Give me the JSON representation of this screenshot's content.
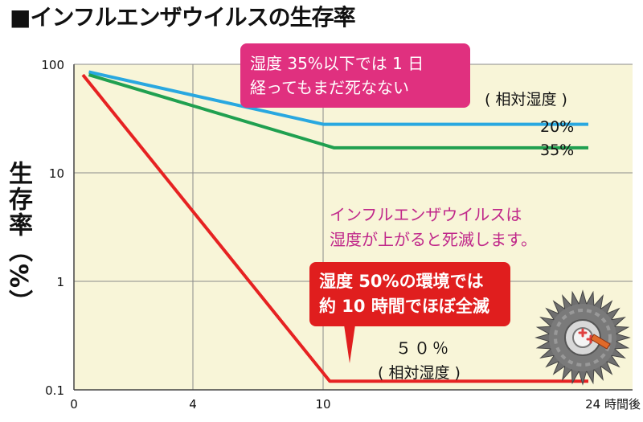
{
  "title": "■インフルエンザウイルスの生存率",
  "ylabel": "生存率（%）",
  "callouts": {
    "humidity35": [
      "湿度 35%以下では 1 日",
      "経ってもまだ死なない"
    ],
    "humidity50": [
      "湿度 50%の環境では",
      "約 10 時間でほぼ全滅"
    ],
    "annotation": [
      "インフルエンザウイルスは",
      "湿度が上がると死滅します。"
    ]
  },
  "legend_title": "( 相対湿度 )",
  "legend_50": [
    "５０％",
    "( 相対湿度 )"
  ],
  "colors": {
    "plot_bg": "#f8f5d8",
    "grid": "#8a8a8a",
    "series_20": "#29a8e0",
    "series_35": "#20a050",
    "series_50": "#e62222",
    "callout_pink": "#e0307f",
    "callout_red": "#e01e1e",
    "annotation_text": "#c0288a"
  },
  "icon": "virus-icon",
  "chart_data": {
    "type": "line",
    "title": "■インフルエンザウイルスの生存率",
    "ylabel": "生存率（%）",
    "xlabel": "24 時間後",
    "y_scale": "log",
    "ylim": [
      0.1,
      100
    ],
    "xlim": [
      0,
      24
    ],
    "x_ticks": [
      {
        "value": 0,
        "label": "0"
      },
      {
        "value": 4,
        "label": "4"
      },
      {
        "value": 10,
        "label": "10"
      },
      {
        "value": 24,
        "label": "24 時間後"
      }
    ],
    "y_ticks": [
      {
        "value": 100,
        "label": "100"
      },
      {
        "value": 10,
        "label": "10"
      },
      {
        "value": 1,
        "label": "1"
      },
      {
        "value": 0.1,
        "label": "0.1"
      }
    ],
    "grid": true,
    "series": [
      {
        "name": "20%",
        "color": "#29a8e0",
        "x": [
          0.5,
          10,
          22
        ],
        "y": [
          85,
          28,
          28
        ]
      },
      {
        "name": "35%",
        "color": "#20a050",
        "x": [
          0.5,
          10.5,
          22
        ],
        "y": [
          80,
          17,
          17
        ]
      },
      {
        "name": "50%",
        "color": "#e62222",
        "x": [
          0.3,
          10.3,
          22
        ],
        "y": [
          80,
          0.12,
          0.12
        ]
      }
    ]
  }
}
